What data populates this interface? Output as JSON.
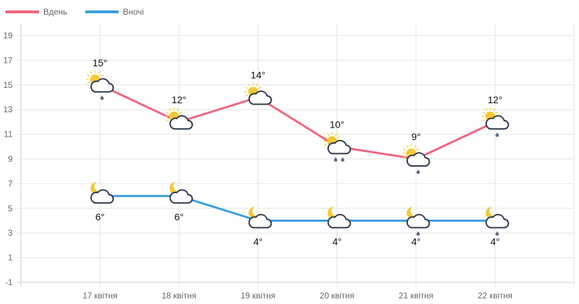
{
  "chart_data": {
    "type": "line",
    "categories": [
      "17 квітня",
      "18 квітня",
      "19 квітня",
      "20 квітня",
      "21 квітня",
      "22 квітня"
    ],
    "series": [
      {
        "name": "Вдень",
        "color": "#f0647e",
        "values": [
          15,
          12,
          14,
          10,
          9,
          12
        ],
        "labels": [
          "15°",
          "12°",
          "14°",
          "10°",
          "9°",
          "12°"
        ],
        "icons": [
          "sun-cloud-rain-1",
          "sun-cloud",
          "sun-cloud",
          "sun-cloud-rain-2",
          "sun-cloud-rain-1",
          "sun-cloud-rain-1"
        ]
      },
      {
        "name": "Вночі",
        "color": "#3a9ee0",
        "values": [
          6,
          6,
          4,
          4,
          4,
          4
        ],
        "labels": [
          "6°",
          "6°",
          "4°",
          "4°",
          "4°",
          "4°"
        ],
        "icons": [
          "moon-cloud",
          "moon-cloud",
          "moon-cloud",
          "moon-cloud",
          "moon-cloud-rain-1",
          "moon-cloud-rain-1"
        ]
      }
    ],
    "yticks": [
      19,
      17,
      15,
      13,
      11,
      9,
      7,
      5,
      3,
      1,
      -1
    ],
    "ylim": [
      -1,
      20
    ],
    "grid": true,
    "legend": "top-left"
  }
}
